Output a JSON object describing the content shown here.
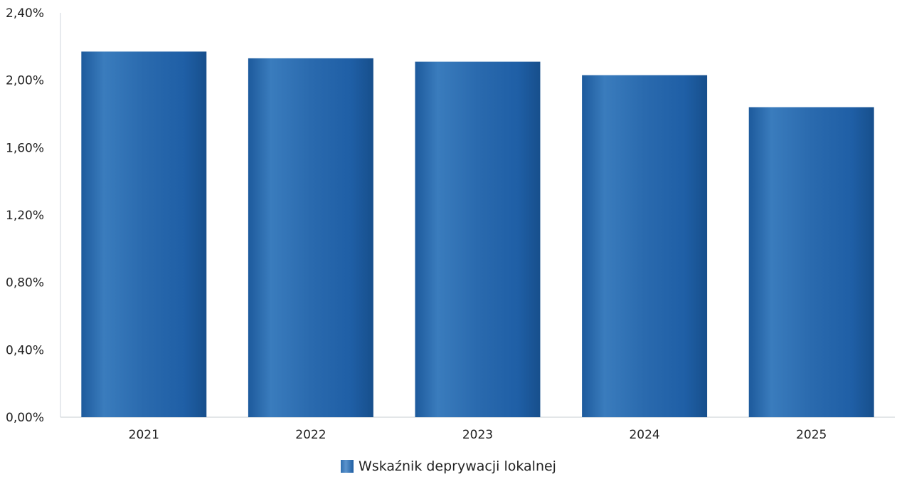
{
  "chart_data": {
    "type": "bar",
    "categories": [
      "2021",
      "2022",
      "2023",
      "2024",
      "2025"
    ],
    "values": [
      2.17,
      2.13,
      2.11,
      2.03,
      1.84
    ],
    "unit": "%",
    "ylim": [
      0,
      2.4
    ],
    "yticks": [
      "0,00%",
      "0,40%",
      "0,80%",
      "1,20%",
      "1,60%",
      "2,00%",
      "2,40%"
    ],
    "series": [
      {
        "name": "Wskaźnik deprywacji lokalnej",
        "values": [
          2.17,
          2.13,
          2.11,
          2.03,
          1.84
        ]
      }
    ],
    "legend_position": "bottom-center",
    "grid": false,
    "bar_color": "#2e6db0"
  }
}
